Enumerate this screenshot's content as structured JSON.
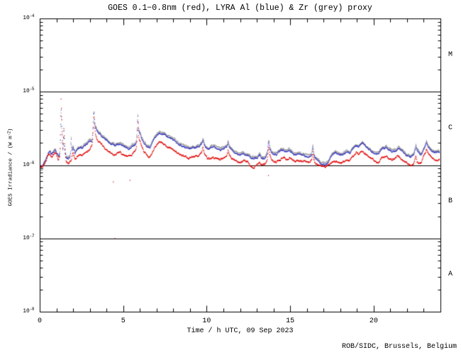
{
  "title": "GOES 0.1−0.8nm (red), LYRA Al (blue) & Zr (grey) proxy",
  "footer": "ROB/SIDC, Brussels, Belgium",
  "colors": {
    "axis": "#000000",
    "background": "#ffffff",
    "goes_red": "#e00000",
    "lyra_al_blue": "#3333bb",
    "lyra_zr_grey": "#999999"
  },
  "chart_data": {
    "type": "scatter",
    "title": "GOES 0.1−0.8nm (red), LYRA Al (blue) & Zr (grey) proxy",
    "xlabel": "Time / h UTC, 09 Sep 2023",
    "ylabel": "GOES Irradiance / (W m⁻²)",
    "ylabel_parts": [
      "GOES Irradiance / (W m",
      "-2",
      ")"
    ],
    "x_range_hours": [
      0,
      24
    ],
    "x_major_ticks": [
      0,
      5,
      10,
      15,
      20
    ],
    "x_minor_tick_every_h": 1,
    "y_log_range_exponents": [
      -8,
      -4
    ],
    "y_tick_base": "10",
    "y_tick_exponents": [
      "-4",
      "-5",
      "-6",
      "-7",
      "-8"
    ],
    "grid_hlines_flux": [
      1e-05,
      1e-06,
      1e-07
    ],
    "flare_class_labels": [
      {
        "label": "M",
        "band_flux": [
          1e-05,
          0.0001
        ]
      },
      {
        "label": "C",
        "band_flux": [
          1e-06,
          1e-05
        ]
      },
      {
        "label": "B",
        "band_flux": [
          1e-07,
          1e-06
        ]
      },
      {
        "label": "A",
        "band_flux": [
          1e-08,
          1e-07
        ]
      }
    ],
    "flux_scale": 1e-06,
    "series": [
      {
        "name": "GOES 0.1-0.8nm",
        "color": "#e00000",
        "style": "dots",
        "anchors_t_flux1e6": [
          [
            0,
            1.0
          ],
          [
            0.1,
            0.9
          ],
          [
            0.22,
            0.95
          ],
          [
            0.35,
            1.1
          ],
          [
            0.5,
            1.35
          ],
          [
            0.62,
            1.42
          ],
          [
            0.72,
            1.3
          ],
          [
            0.82,
            1.38
          ],
          [
            0.92,
            1.45
          ],
          [
            1.02,
            1.3
          ],
          [
            1.12,
            1.15
          ],
          [
            1.2,
            1.3
          ],
          [
            1.23,
            1.9
          ],
          [
            1.26,
            4.5
          ],
          [
            1.285,
            8.6
          ],
          [
            1.31,
            5.0
          ],
          [
            1.35,
            2.6
          ],
          [
            1.39,
            1.6
          ],
          [
            1.43,
            2.4
          ],
          [
            1.455,
            3.2
          ],
          [
            1.48,
            2.0
          ],
          [
            1.53,
            1.4
          ],
          [
            1.58,
            1.15
          ],
          [
            1.7,
            1.05
          ],
          [
            1.8,
            1.08
          ],
          [
            1.9,
            1.18
          ],
          [
            2.0,
            1.45
          ],
          [
            2.12,
            1.22
          ],
          [
            2.25,
            1.32
          ],
          [
            2.4,
            1.38
          ],
          [
            2.55,
            1.33
          ],
          [
            2.7,
            1.48
          ],
          [
            2.9,
            1.58
          ],
          [
            3.05,
            1.7
          ],
          [
            3.13,
            1.8
          ],
          [
            3.17,
            2.2
          ],
          [
            3.21,
            3.2
          ],
          [
            3.245,
            5.0
          ],
          [
            3.28,
            3.4
          ],
          [
            3.33,
            2.6
          ],
          [
            3.4,
            2.35
          ],
          [
            3.5,
            2.15
          ],
          [
            3.7,
            1.85
          ],
          [
            3.9,
            1.7
          ],
          [
            4.1,
            1.55
          ],
          [
            4.3,
            1.45
          ],
          [
            4.5,
            1.4
          ],
          [
            4.7,
            1.48
          ],
          [
            4.9,
            1.42
          ],
          [
            5.1,
            1.35
          ],
          [
            5.3,
            1.3
          ],
          [
            5.5,
            1.38
          ],
          [
            5.68,
            1.5
          ],
          [
            5.76,
            1.6
          ],
          [
            5.8,
            1.75
          ],
          [
            5.84,
            2.4
          ],
          [
            5.875,
            3.9
          ],
          [
            5.91,
            2.6
          ],
          [
            5.96,
            2.2
          ],
          [
            6.03,
            2.0
          ],
          [
            6.1,
            1.75
          ],
          [
            6.25,
            1.5
          ],
          [
            6.45,
            1.35
          ],
          [
            6.6,
            1.3
          ],
          [
            6.75,
            1.5
          ],
          [
            6.9,
            1.75
          ],
          [
            7.05,
            1.95
          ],
          [
            7.18,
            2.05
          ],
          [
            7.35,
            1.95
          ],
          [
            7.55,
            1.85
          ],
          [
            7.75,
            1.75
          ],
          [
            7.95,
            1.65
          ],
          [
            8.15,
            1.52
          ],
          [
            8.35,
            1.42
          ],
          [
            8.55,
            1.38
          ],
          [
            8.75,
            1.3
          ],
          [
            8.95,
            1.22
          ],
          [
            9.15,
            1.26
          ],
          [
            9.35,
            1.3
          ],
          [
            9.55,
            1.35
          ],
          [
            9.7,
            1.45
          ],
          [
            9.74,
            1.55
          ],
          [
            9.78,
            1.7
          ],
          [
            9.84,
            1.45
          ],
          [
            9.92,
            1.32
          ],
          [
            10.05,
            1.22
          ],
          [
            10.2,
            1.25
          ],
          [
            10.4,
            1.3
          ],
          [
            10.6,
            1.28
          ],
          [
            10.8,
            1.22
          ],
          [
            11.0,
            1.22
          ],
          [
            11.2,
            1.32
          ],
          [
            11.24,
            1.4
          ],
          [
            11.28,
            1.55
          ],
          [
            11.34,
            1.38
          ],
          [
            11.42,
            1.28
          ],
          [
            11.6,
            1.18
          ],
          [
            11.8,
            1.12
          ],
          [
            12.0,
            1.08
          ],
          [
            12.2,
            1.14
          ],
          [
            12.42,
            1.09
          ],
          [
            12.6,
            1.0
          ],
          [
            12.82,
            0.96
          ],
          [
            13.0,
            1.0
          ],
          [
            13.16,
            1.1
          ],
          [
            13.3,
            1.02
          ],
          [
            13.5,
            1.06
          ],
          [
            13.64,
            1.18
          ],
          [
            13.68,
            1.45
          ],
          [
            13.72,
            1.7
          ],
          [
            13.78,
            1.35
          ],
          [
            13.88,
            1.22
          ],
          [
            14.0,
            1.15
          ],
          [
            14.18,
            1.12
          ],
          [
            14.38,
            1.2
          ],
          [
            14.58,
            1.26
          ],
          [
            14.78,
            1.22
          ],
          [
            14.95,
            1.26
          ],
          [
            15.15,
            1.16
          ],
          [
            15.35,
            1.11
          ],
          [
            15.55,
            1.14
          ],
          [
            15.75,
            1.16
          ],
          [
            15.95,
            1.11
          ],
          [
            16.15,
            1.07
          ],
          [
            16.3,
            1.18
          ],
          [
            16.33,
            1.38
          ],
          [
            16.36,
            1.55
          ],
          [
            16.42,
            1.18
          ],
          [
            16.5,
            1.08
          ],
          [
            16.65,
            1.0
          ],
          [
            16.85,
            0.95
          ],
          [
            17.05,
            0.93
          ],
          [
            17.25,
            0.96
          ],
          [
            17.4,
            1.05
          ],
          [
            17.55,
            1.12
          ],
          [
            17.75,
            1.12
          ],
          [
            17.95,
            1.08
          ],
          [
            18.15,
            1.08
          ],
          [
            18.35,
            1.15
          ],
          [
            18.55,
            1.12
          ],
          [
            18.75,
            1.25
          ],
          [
            18.95,
            1.45
          ],
          [
            19.1,
            1.38
          ],
          [
            19.32,
            1.52
          ],
          [
            19.5,
            1.45
          ],
          [
            19.7,
            1.3
          ],
          [
            19.9,
            1.18
          ],
          [
            20.1,
            1.1
          ],
          [
            20.3,
            1.08
          ],
          [
            20.52,
            1.26
          ],
          [
            20.72,
            1.3
          ],
          [
            20.9,
            1.25
          ],
          [
            21.1,
            1.16
          ],
          [
            21.3,
            1.22
          ],
          [
            21.48,
            1.3
          ],
          [
            21.65,
            1.2
          ],
          [
            21.85,
            1.12
          ],
          [
            22.05,
            1.03
          ],
          [
            22.25,
            1.0
          ],
          [
            22.4,
            1.08
          ],
          [
            22.5,
            1.3
          ],
          [
            22.53,
            1.42
          ],
          [
            22.6,
            1.2
          ],
          [
            22.7,
            1.12
          ],
          [
            22.85,
            1.1
          ],
          [
            23.0,
            1.35
          ],
          [
            23.08,
            1.42
          ],
          [
            23.13,
            1.5
          ],
          [
            23.17,
            1.6
          ],
          [
            23.24,
            1.45
          ],
          [
            23.32,
            1.36
          ],
          [
            23.5,
            1.2
          ],
          [
            23.7,
            1.15
          ],
          [
            23.85,
            1.18
          ],
          [
            24,
            1.2
          ]
        ]
      },
      {
        "name": "LYRA Al proxy",
        "color": "#3333bb",
        "style": "dots",
        "ratio_to_goes_anchors": [
          [
            0,
            1.03
          ],
          [
            0.3,
            1.06
          ],
          [
            0.6,
            1.09
          ],
          [
            0.9,
            1.12
          ],
          [
            1.1,
            1.18
          ],
          [
            1.2,
            1.1
          ],
          [
            1.26,
            0.8
          ],
          [
            1.285,
            0.72
          ],
          [
            1.33,
            0.9
          ],
          [
            1.4,
            1.05
          ],
          [
            1.47,
            1.0
          ],
          [
            1.55,
            1.12
          ],
          [
            1.75,
            1.15
          ],
          [
            1.84,
            1.2
          ],
          [
            1.885,
            2.05
          ],
          [
            1.92,
            1.3
          ],
          [
            2.1,
            1.25
          ],
          [
            2.5,
            1.28
          ],
          [
            3.0,
            1.26
          ],
          [
            3.245,
            1.12
          ],
          [
            3.4,
            1.28
          ],
          [
            4.0,
            1.32
          ],
          [
            5.0,
            1.33
          ],
          [
            5.76,
            1.25
          ],
          [
            5.84,
            1.3
          ],
          [
            5.875,
            1.32
          ],
          [
            5.95,
            1.3
          ],
          [
            6.1,
            1.3
          ],
          [
            6.4,
            1.35
          ],
          [
            7.2,
            1.33
          ],
          [
            8.0,
            1.33
          ],
          [
            9.0,
            1.35
          ],
          [
            9.78,
            1.35
          ],
          [
            10.5,
            1.32
          ],
          [
            11.28,
            1.35
          ],
          [
            12.0,
            1.25
          ],
          [
            12.8,
            1.25
          ],
          [
            13.3,
            1.22
          ],
          [
            13.72,
            1.23
          ],
          [
            14.0,
            1.25
          ],
          [
            14.6,
            1.26
          ],
          [
            15.5,
            1.22
          ],
          [
            16.0,
            1.2
          ],
          [
            16.36,
            1.18
          ],
          [
            16.7,
            1.1
          ],
          [
            17.05,
            1.05
          ],
          [
            17.3,
            1.12
          ],
          [
            17.6,
            1.3
          ],
          [
            18.0,
            1.28
          ],
          [
            18.5,
            1.3
          ],
          [
            19.0,
            1.28
          ],
          [
            19.35,
            1.3
          ],
          [
            20.0,
            1.3
          ],
          [
            20.55,
            1.33
          ],
          [
            21.0,
            1.3
          ],
          [
            21.5,
            1.32
          ],
          [
            22.0,
            1.3
          ],
          [
            22.55,
            1.32
          ],
          [
            23.0,
            1.28
          ],
          [
            23.2,
            1.28
          ],
          [
            23.6,
            1.3
          ],
          [
            24,
            1.3
          ]
        ]
      },
      {
        "name": "LYRA Zr proxy",
        "color": "#999999",
        "style": "dots",
        "ratio_to_al_anchors": [
          [
            0,
            0.93
          ],
          [
            0.2,
            0.9
          ],
          [
            0.5,
            1.0
          ],
          [
            0.9,
            1.05
          ],
          [
            1.28,
            0.9
          ],
          [
            1.6,
            1.05
          ],
          [
            24,
            1.05
          ]
        ]
      }
    ],
    "outlier_points": [
      {
        "series": "GOES 0.1-0.8nm",
        "t": 4.41,
        "flux": 5.9e-07
      },
      {
        "series": "GOES 0.1-0.8nm",
        "t": 5.41,
        "flux": 6.2e-07
      },
      {
        "series": "GOES 0.1-0.8nm",
        "t": 4.5,
        "flux": 1e-07
      },
      {
        "series": "GOES 0.1-0.8nm",
        "t": 13.7,
        "flux": 7.2e-07
      }
    ]
  }
}
